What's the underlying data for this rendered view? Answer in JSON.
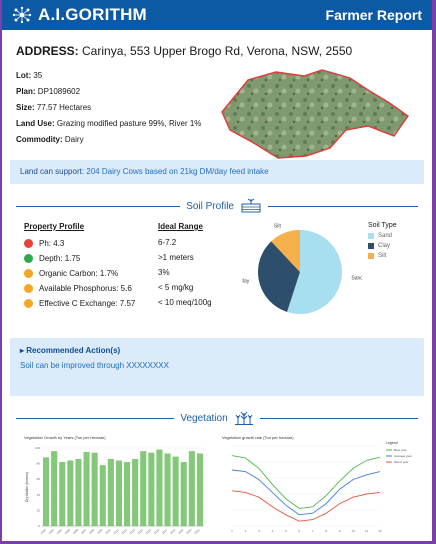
{
  "header": {
    "brand": "A.I.GORITHM",
    "report_title": "Farmer Report"
  },
  "address": {
    "label": "ADDRESS:",
    "value": "Carinya, 553 Upper Brogo Rd, Verona, NSW, 2550"
  },
  "property": [
    {
      "label": "Lot:",
      "value": "35"
    },
    {
      "label": "Plan:",
      "value": "DP1089602"
    },
    {
      "label": "Size:",
      "value": "77.57 Hectares"
    },
    {
      "label": "Land Use:",
      "value": "Grazing modified pasture 99%, River 1%"
    },
    {
      "label": "Commodity:",
      "value": "Dairy"
    }
  ],
  "support": {
    "label": "Land can support:",
    "value": "204 Dairy Cows based on 21kg DM/day feed intake"
  },
  "soil_section": {
    "title": "Soil Profile",
    "icon": "soil-icon"
  },
  "soil_table": {
    "col1": "Property Profile",
    "col2": "Ideal Range",
    "rows": [
      {
        "label": "Ph: 4.3",
        "range": "6-7.2",
        "color": "#e8413c"
      },
      {
        "label": "Depth: 1.75",
        "range": ">1 meters",
        "color": "#2fa84f"
      },
      {
        "label": "Organic Carbon: 1.7%",
        "range": "3%",
        "color": "#f5a623"
      },
      {
        "label": "Available Phosphorus: 5.6",
        "range": "< 5 mg/kg",
        "color": "#f5a623"
      },
      {
        "label": "Effective C Exchange: 7.57",
        "range": "< 10 meq/100g",
        "color": "#f5a623"
      }
    ]
  },
  "soil_type": {
    "title": "Soil Type",
    "slices": [
      {
        "name": "Sand",
        "value": 55,
        "color": "#a7def0"
      },
      {
        "name": "Clay",
        "value": 33,
        "color": "#2d4f6b"
      },
      {
        "name": "Silt",
        "value": 12,
        "color": "#f6b04b"
      }
    ]
  },
  "action": {
    "title": "Recommended Action(s)",
    "text": "Soil can be improved through XXXXXXXX",
    "arrow": "▸"
  },
  "veg_section": {
    "title": "Vegetation",
    "icon": "plant-icon"
  },
  "chart_data": [
    {
      "type": "bar",
      "title": "Vegetation Growth by Years (Ton per Hectare)",
      "ylabel": "Dry Matter (tonnes)",
      "categories": [
        "2002",
        "2003",
        "2004",
        "2005",
        "2006",
        "2007",
        "2008",
        "2009",
        "2010",
        "2011",
        "2012",
        "2013",
        "2014",
        "2015",
        "2016",
        "2017",
        "2018",
        "2019",
        "2020",
        "2021"
      ],
      "values": [
        88,
        96,
        82,
        84,
        86,
        95,
        94,
        78,
        86,
        84,
        82,
        86,
        96,
        94,
        98,
        93,
        89,
        82,
        96,
        93
      ],
      "ylim": [
        0,
        100
      ],
      "color": "#86c87a"
    },
    {
      "type": "line",
      "title": "Vegetation growth rate (Ton per hectare)",
      "legend_title": "Legend",
      "categories": [
        "1",
        "2",
        "3",
        "4",
        "5",
        "6",
        "7",
        "8",
        "9",
        "10",
        "11",
        "12"
      ],
      "series": [
        {
          "name": "Best year",
          "color": "#4fb84f",
          "values": [
            88,
            85,
            72,
            52,
            34,
            22,
            24,
            38,
            56,
            72,
            82,
            86
          ]
        },
        {
          "name": "Average year",
          "color": "#3f7ee0",
          "values": [
            70,
            68,
            58,
            42,
            26,
            14,
            16,
            28,
            46,
            58,
            64,
            68
          ]
        },
        {
          "name": "Worst year",
          "color": "#e8573c",
          "values": [
            44,
            42,
            36,
            24,
            14,
            6,
            8,
            16,
            28,
            36,
            40,
            42
          ]
        }
      ],
      "ylim": [
        0,
        100
      ]
    }
  ]
}
